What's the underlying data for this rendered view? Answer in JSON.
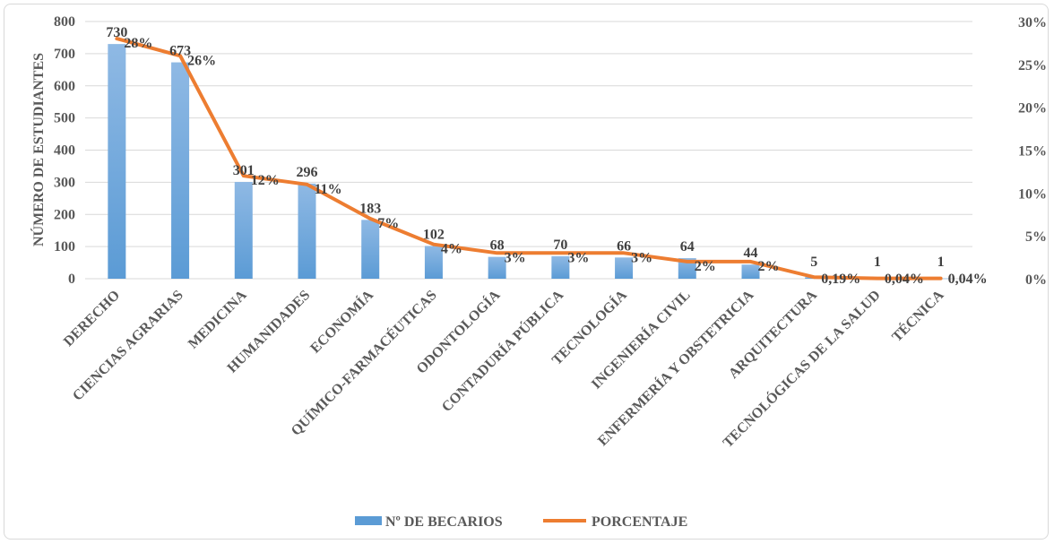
{
  "chart_data": {
    "type": "bar",
    "categories": [
      "DERECHO",
      "CIENCIAS AGRARIAS",
      "MEDICINA",
      "HUMANIDADES",
      "ECONOMÍA",
      "QUÍMICO-FARMACÉUTICAS",
      "ODONTOLOGÍA",
      "CONTADURÍA PÚBLICA",
      "TECNOLOGÍA",
      "INGENIERÍA CIVIL",
      "ENFERMERÍA Y OBSTETRICIA",
      "ARQUITECTURA",
      "TECNOLÓGICAS DE LA SALUD",
      "TÉCNICA"
    ],
    "series": [
      {
        "name": "Nº DE BECARIOS",
        "type": "bar",
        "axis": "left",
        "color": "#5b9bd5",
        "values": [
          730,
          673,
          301,
          296,
          183,
          102,
          68,
          70,
          66,
          64,
          44,
          5,
          1,
          1
        ],
        "labels": [
          "730",
          "673",
          "301",
          "296",
          "183",
          "102",
          "68",
          "70",
          "66",
          "64",
          "44",
          "5",
          "1",
          "1"
        ]
      },
      {
        "name": "PORCENTAJE",
        "type": "line",
        "axis": "right",
        "color": "#ed7d31",
        "values": [
          28,
          26,
          12,
          11,
          7,
          4,
          3,
          3,
          3,
          2,
          2,
          0.19,
          0.04,
          0.04
        ],
        "labels": [
          "28%",
          "26%",
          "12%",
          "11%",
          "7%",
          "4%",
          "3%",
          "3%",
          "3%",
          "2%",
          "2%",
          "0,19%",
          "0,04%",
          "0,04%"
        ]
      }
    ],
    "ylabel": "NÚMERO DE ESTUDIANTES",
    "ylim": [
      0,
      800
    ],
    "yticks": [
      "0",
      "100",
      "200",
      "300",
      "400",
      "500",
      "600",
      "700",
      "800"
    ],
    "y2lim": [
      0,
      30
    ],
    "y2ticks": [
      "0%",
      "5%",
      "10%",
      "15%",
      "20%",
      "25%",
      "30%"
    ],
    "grid": true,
    "legend": "bottom-center"
  }
}
